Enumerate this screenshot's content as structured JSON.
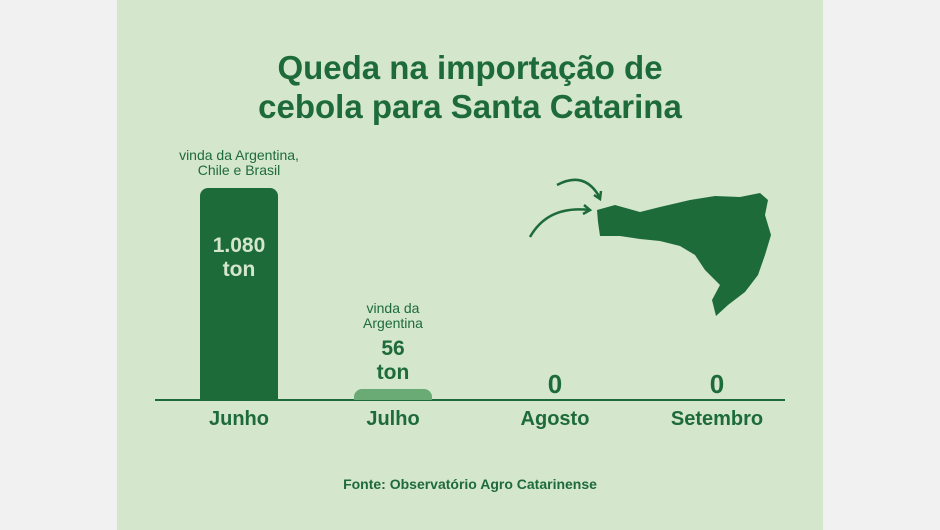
{
  "chart_data": {
    "type": "bar",
    "title": "Queda na importação de\ncebola para Santa Catarina",
    "categories": [
      "Junho",
      "Julho",
      "Agosto",
      "Setembro"
    ],
    "values": [
      1080,
      56,
      0,
      0
    ],
    "value_labels": [
      "1.080\nton",
      "56\nton",
      "0",
      "0"
    ],
    "annotations": [
      "vinda da Argentina,\nChile e Brasil",
      "vinda da\nArgentina",
      null,
      null
    ],
    "colors": [
      "#1e6b3a",
      "#6aaa74",
      "#1e6b3a",
      "#1e6b3a"
    ],
    "source": "Fonte: Observatório Agro Catarinense"
  }
}
